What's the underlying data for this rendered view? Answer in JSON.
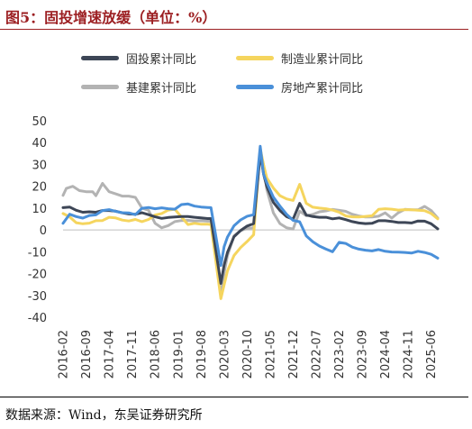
{
  "header": {
    "title": "图5：固投增速放缓（单位：%）"
  },
  "footer": {
    "source": "数据来源：Wind，东吴证券研究所"
  },
  "colors": {
    "title": "#9c1f22",
    "fixed_asset": "#3d4656",
    "manufacturing": "#f5d55e",
    "infrastructure": "#b3b3b3",
    "real_estate": "#4a90d9"
  },
  "chart_data": {
    "type": "line",
    "title": "",
    "xlabel": "",
    "ylabel": "",
    "ylim": [
      -40,
      50
    ],
    "yticks": [
      50,
      40,
      30,
      20,
      10,
      0,
      -10,
      -20,
      -30,
      -40
    ],
    "x_tick_labels": [
      "2016-02",
      "2016-09",
      "2017-04",
      "2017-11",
      "2018-06",
      "2019-01",
      "2019-08",
      "2020-03",
      "2020-10",
      "2021-05",
      "2021-12",
      "2022-07",
      "2023-02",
      "2023-09",
      "2024-04",
      "2024-11",
      "2025-06"
    ],
    "grid": false,
    "legend_position": "top",
    "series": [
      {
        "name": "固投累计同比",
        "color_key": "fixed_asset",
        "points": [
          [
            "2016-02",
            10.2
          ],
          [
            "2016-04",
            10.5
          ],
          [
            "2016-06",
            9.0
          ],
          [
            "2016-08",
            8.1
          ],
          [
            "2016-10",
            8.3
          ],
          [
            "2016-12",
            8.1
          ],
          [
            "2017-02",
            8.9
          ],
          [
            "2017-04",
            8.9
          ],
          [
            "2017-06",
            8.6
          ],
          [
            "2017-08",
            7.8
          ],
          [
            "2017-10",
            7.3
          ],
          [
            "2017-12",
            7.2
          ],
          [
            "2018-02",
            7.9
          ],
          [
            "2018-04",
            7.0
          ],
          [
            "2018-06",
            6.0
          ],
          [
            "2018-08",
            5.3
          ],
          [
            "2018-10",
            5.7
          ],
          [
            "2018-12",
            5.9
          ],
          [
            "2019-02",
            6.1
          ],
          [
            "2019-04",
            6.1
          ],
          [
            "2019-06",
            5.8
          ],
          [
            "2019-08",
            5.5
          ],
          [
            "2019-10",
            5.2
          ],
          [
            "2019-11",
            5.2
          ],
          [
            "2020-02",
            -24.5
          ],
          [
            "2020-03",
            -16.1
          ],
          [
            "2020-04",
            -10.3
          ],
          [
            "2020-06",
            -3.1
          ],
          [
            "2020-08",
            -0.3
          ],
          [
            "2020-10",
            1.8
          ],
          [
            "2020-12",
            2.9
          ],
          [
            "2021-02",
            35.0
          ],
          [
            "2021-03",
            25.6
          ],
          [
            "2021-04",
            19.9
          ],
          [
            "2021-06",
            12.6
          ],
          [
            "2021-08",
            8.9
          ],
          [
            "2021-10",
            6.1
          ],
          [
            "2021-12",
            4.9
          ],
          [
            "2022-02",
            12.2
          ],
          [
            "2022-04",
            6.8
          ],
          [
            "2022-06",
            6.1
          ],
          [
            "2022-08",
            5.8
          ],
          [
            "2022-10",
            5.8
          ],
          [
            "2022-12",
            5.1
          ],
          [
            "2023-02",
            5.5
          ],
          [
            "2023-04",
            4.7
          ],
          [
            "2023-06",
            3.8
          ],
          [
            "2023-08",
            3.2
          ],
          [
            "2023-10",
            2.9
          ],
          [
            "2023-12",
            3.0
          ],
          [
            "2024-02",
            4.2
          ],
          [
            "2024-04",
            4.2
          ],
          [
            "2024-06",
            3.9
          ],
          [
            "2024-08",
            3.4
          ],
          [
            "2024-10",
            3.4
          ],
          [
            "2024-12",
            3.2
          ],
          [
            "2025-02",
            4.1
          ],
          [
            "2025-04",
            4.0
          ],
          [
            "2025-06",
            2.8
          ],
          [
            "2025-08",
            0.5
          ]
        ]
      },
      {
        "name": "制造业累计同比",
        "color_key": "manufacturing",
        "points": [
          [
            "2016-02",
            7.5
          ],
          [
            "2016-04",
            6.0
          ],
          [
            "2016-06",
            3.3
          ],
          [
            "2016-08",
            2.8
          ],
          [
            "2016-10",
            3.1
          ],
          [
            "2016-12",
            4.2
          ],
          [
            "2017-02",
            4.3
          ],
          [
            "2017-04",
            5.8
          ],
          [
            "2017-06",
            5.5
          ],
          [
            "2017-08",
            4.5
          ],
          [
            "2017-10",
            4.1
          ],
          [
            "2017-12",
            4.8
          ],
          [
            "2018-02",
            3.8
          ],
          [
            "2018-04",
            4.8
          ],
          [
            "2018-06",
            6.8
          ],
          [
            "2018-08",
            7.5
          ],
          [
            "2018-10",
            9.1
          ],
          [
            "2018-12",
            9.5
          ],
          [
            "2019-02",
            5.9
          ],
          [
            "2019-04",
            2.5
          ],
          [
            "2019-06",
            3.0
          ],
          [
            "2019-08",
            2.6
          ],
          [
            "2019-10",
            2.6
          ],
          [
            "2019-11",
            2.5
          ],
          [
            "2020-02",
            -31.5
          ],
          [
            "2020-03",
            -25.2
          ],
          [
            "2020-04",
            -18.8
          ],
          [
            "2020-06",
            -11.7
          ],
          [
            "2020-08",
            -8.1
          ],
          [
            "2020-10",
            -5.3
          ],
          [
            "2020-12",
            -2.2
          ],
          [
            "2021-02",
            37.3
          ],
          [
            "2021-03",
            29.8
          ],
          [
            "2021-04",
            23.8
          ],
          [
            "2021-06",
            19.2
          ],
          [
            "2021-08",
            15.7
          ],
          [
            "2021-10",
            14.2
          ],
          [
            "2021-12",
            13.5
          ],
          [
            "2022-02",
            20.9
          ],
          [
            "2022-04",
            12.2
          ],
          [
            "2022-06",
            10.4
          ],
          [
            "2022-08",
            10.0
          ],
          [
            "2022-10",
            9.7
          ],
          [
            "2022-12",
            9.1
          ],
          [
            "2023-02",
            8.1
          ],
          [
            "2023-04",
            6.4
          ],
          [
            "2023-06",
            6.0
          ],
          [
            "2023-08",
            5.9
          ],
          [
            "2023-10",
            6.2
          ],
          [
            "2023-12",
            6.5
          ],
          [
            "2024-02",
            9.4
          ],
          [
            "2024-04",
            9.7
          ],
          [
            "2024-06",
            9.5
          ],
          [
            "2024-08",
            9.1
          ],
          [
            "2024-10",
            9.3
          ],
          [
            "2024-12",
            9.2
          ],
          [
            "2025-02",
            9.0
          ],
          [
            "2025-04",
            8.8
          ],
          [
            "2025-06",
            7.5
          ],
          [
            "2025-08",
            5.1
          ]
        ]
      },
      {
        "name": "基建累计同比",
        "color_key": "infrastructure",
        "points": [
          [
            "2016-02",
            15.8
          ],
          [
            "2016-03",
            19.0
          ],
          [
            "2016-05",
            20.0
          ],
          [
            "2016-07",
            18.0
          ],
          [
            "2016-09",
            17.5
          ],
          [
            "2016-11",
            17.5
          ],
          [
            "2016-12",
            15.7
          ],
          [
            "2017-02",
            21.3
          ],
          [
            "2017-04",
            17.5
          ],
          [
            "2017-06",
            16.5
          ],
          [
            "2017-08",
            15.5
          ],
          [
            "2017-10",
            15.5
          ],
          [
            "2017-12",
            14.9
          ],
          [
            "2018-02",
            10.0
          ],
          [
            "2018-04",
            9.0
          ],
          [
            "2018-06",
            3.0
          ],
          [
            "2018-08",
            1.0
          ],
          [
            "2018-10",
            2.0
          ],
          [
            "2018-12",
            3.8
          ],
          [
            "2019-02",
            4.3
          ],
          [
            "2019-04",
            4.4
          ],
          [
            "2019-06",
            4.1
          ],
          [
            "2019-08",
            4.2
          ],
          [
            "2019-10",
            4.0
          ],
          [
            "2019-11",
            4.0
          ],
          [
            "2020-02",
            -30.3
          ],
          [
            "2020-03",
            -19.7
          ],
          [
            "2020-04",
            -11.8
          ],
          [
            "2020-06",
            -2.7
          ],
          [
            "2020-08",
            -0.3
          ],
          [
            "2020-10",
            0.7
          ],
          [
            "2020-12",
            0.9
          ],
          [
            "2021-02",
            36.6
          ],
          [
            "2021-03",
            29.7
          ],
          [
            "2021-04",
            18.4
          ],
          [
            "2021-06",
            7.8
          ],
          [
            "2021-08",
            2.9
          ],
          [
            "2021-10",
            1.0
          ],
          [
            "2021-12",
            0.4
          ],
          [
            "2022-02",
            8.6
          ],
          [
            "2022-04",
            6.5
          ],
          [
            "2022-06",
            7.1
          ],
          [
            "2022-08",
            8.3
          ],
          [
            "2022-10",
            8.7
          ],
          [
            "2022-12",
            9.4
          ],
          [
            "2023-02",
            9.0
          ],
          [
            "2023-04",
            8.5
          ],
          [
            "2023-06",
            7.2
          ],
          [
            "2023-08",
            6.4
          ],
          [
            "2023-10",
            5.9
          ],
          [
            "2023-12",
            5.9
          ],
          [
            "2024-02",
            6.3
          ],
          [
            "2024-04",
            7.8
          ],
          [
            "2024-06",
            5.4
          ],
          [
            "2024-08",
            7.9
          ],
          [
            "2024-10",
            9.4
          ],
          [
            "2024-12",
            9.2
          ],
          [
            "2025-02",
            9.2
          ],
          [
            "2025-04",
            10.8
          ],
          [
            "2025-06",
            8.9
          ],
          [
            "2025-08",
            5.4
          ]
        ]
      },
      {
        "name": "房地产累计同比",
        "color_key": "real_estate",
        "points": [
          [
            "2016-02",
            3.0
          ],
          [
            "2016-04",
            7.2
          ],
          [
            "2016-06",
            6.1
          ],
          [
            "2016-08",
            5.4
          ],
          [
            "2016-10",
            6.6
          ],
          [
            "2016-12",
            6.9
          ],
          [
            "2017-02",
            8.9
          ],
          [
            "2017-04",
            9.3
          ],
          [
            "2017-06",
            8.5
          ],
          [
            "2017-08",
            7.9
          ],
          [
            "2017-10",
            7.8
          ],
          [
            "2017-12",
            7.0
          ],
          [
            "2018-02",
            9.9
          ],
          [
            "2018-04",
            10.3
          ],
          [
            "2018-06",
            9.7
          ],
          [
            "2018-08",
            10.1
          ],
          [
            "2018-10",
            9.7
          ],
          [
            "2018-12",
            9.5
          ],
          [
            "2019-02",
            11.6
          ],
          [
            "2019-04",
            11.9
          ],
          [
            "2019-06",
            10.9
          ],
          [
            "2019-08",
            10.5
          ],
          [
            "2019-10",
            10.3
          ],
          [
            "2019-11",
            10.2
          ],
          [
            "2020-02",
            -16.3
          ],
          [
            "2020-03",
            -7.7
          ],
          [
            "2020-04",
            -3.3
          ],
          [
            "2020-06",
            1.9
          ],
          [
            "2020-08",
            4.6
          ],
          [
            "2020-10",
            6.3
          ],
          [
            "2020-12",
            7.0
          ],
          [
            "2021-02",
            38.3
          ],
          [
            "2021-03",
            25.6
          ],
          [
            "2021-04",
            21.6
          ],
          [
            "2021-06",
            15.0
          ],
          [
            "2021-08",
            10.9
          ],
          [
            "2021-10",
            7.2
          ],
          [
            "2021-12",
            4.4
          ],
          [
            "2022-02",
            3.7
          ],
          [
            "2022-04",
            -2.7
          ],
          [
            "2022-06",
            -5.4
          ],
          [
            "2022-08",
            -7.4
          ],
          [
            "2022-10",
            -8.8
          ],
          [
            "2022-12",
            -10.0
          ],
          [
            "2023-02",
            -5.7
          ],
          [
            "2023-04",
            -6.2
          ],
          [
            "2023-06",
            -7.9
          ],
          [
            "2023-08",
            -8.8
          ],
          [
            "2023-10",
            -9.3
          ],
          [
            "2023-12",
            -9.6
          ],
          [
            "2024-02",
            -9.0
          ],
          [
            "2024-04",
            -9.8
          ],
          [
            "2024-06",
            -10.1
          ],
          [
            "2024-08",
            -10.2
          ],
          [
            "2024-10",
            -10.3
          ],
          [
            "2024-12",
            -10.6
          ],
          [
            "2025-02",
            -9.8
          ],
          [
            "2025-04",
            -10.3
          ],
          [
            "2025-06",
            -11.2
          ],
          [
            "2025-08",
            -12.9
          ]
        ]
      }
    ]
  }
}
